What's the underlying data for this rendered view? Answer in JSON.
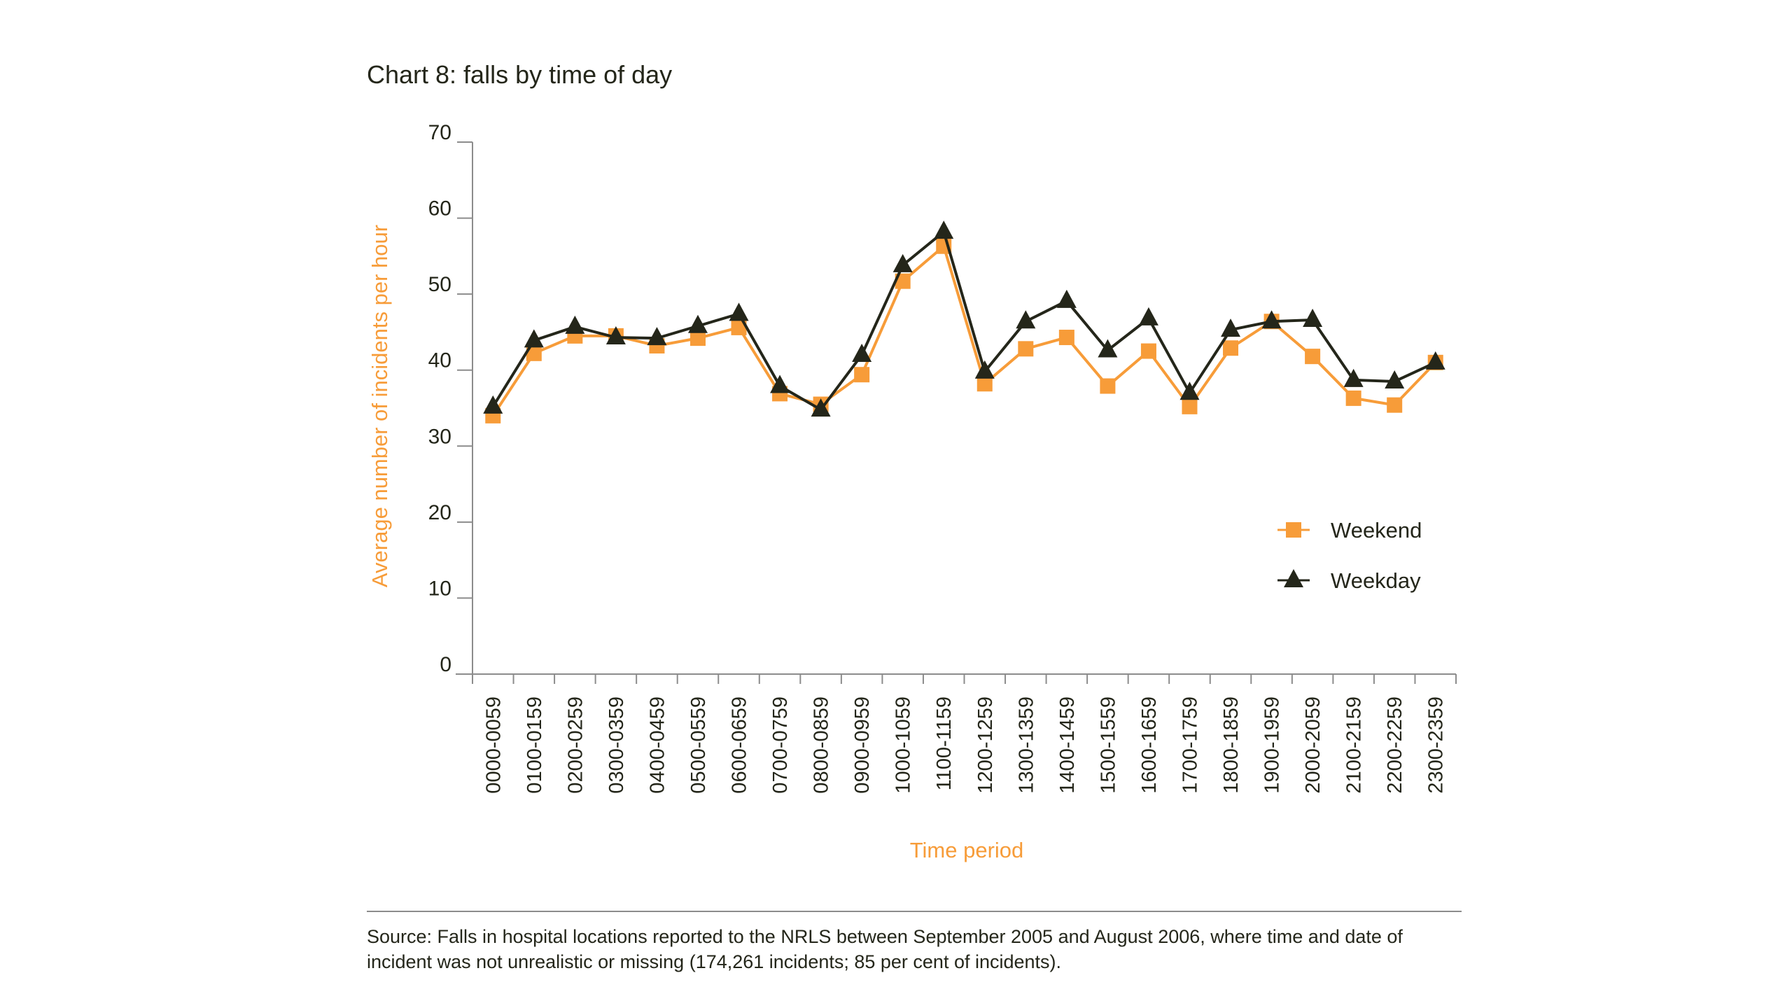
{
  "page": {
    "title": "Chart 8: falls by time of day",
    "source": "Source: Falls in hospital locations reported to the NRLS between September 2005 and August 2006, where time and date of incident was not unrealistic or missing (174,261 incidents; 85 per cent of incidents)."
  },
  "colors": {
    "weekend": "#f79c39",
    "weekday": "#24261a",
    "axis": "#8c8c8c",
    "axis_label": "#f79c39"
  },
  "chart_data": {
    "type": "line",
    "title": "Chart 8: falls by time of day",
    "xlabel": "Time period",
    "ylabel": "Average number of incidents per hour",
    "ylim": [
      0,
      70
    ],
    "yticks": [
      0,
      10,
      20,
      30,
      40,
      50,
      60,
      70
    ],
    "grid": false,
    "legend": "right",
    "categories": [
      "0000-0059",
      "0100-0159",
      "0200-0259",
      "0300-0359",
      "0400-0459",
      "0500-0559",
      "0600-0659",
      "0700-0759",
      "0800-0859",
      "0900-0959",
      "1000-1059",
      "1100-1159",
      "1200-1259",
      "1300-1359",
      "1400-1459",
      "1500-1559",
      "1600-1659",
      "1700-1759",
      "1800-1859",
      "1900-1959",
      "2000-2059",
      "2100-2159",
      "2200-2259",
      "2300-2359"
    ],
    "series": [
      {
        "name": "Weekend",
        "marker": "square",
        "values": [
          34.0,
          42.2,
          44.5,
          44.5,
          43.2,
          44.2,
          45.6,
          36.9,
          35.5,
          39.4,
          51.7,
          56.3,
          38.2,
          42.8,
          44.3,
          37.9,
          42.5,
          35.2,
          42.9,
          46.4,
          41.8,
          36.3,
          35.4,
          41.0
        ]
      },
      {
        "name": "Weekday",
        "marker": "triangle",
        "values": [
          35.2,
          43.9,
          45.7,
          44.3,
          44.2,
          45.8,
          47.4,
          37.9,
          34.8,
          42.0,
          53.8,
          58.2,
          39.8,
          46.4,
          49.1,
          42.6,
          46.8,
          37.0,
          45.3,
          46.4,
          46.6,
          38.7,
          38.5,
          41.0
        ]
      }
    ]
  }
}
